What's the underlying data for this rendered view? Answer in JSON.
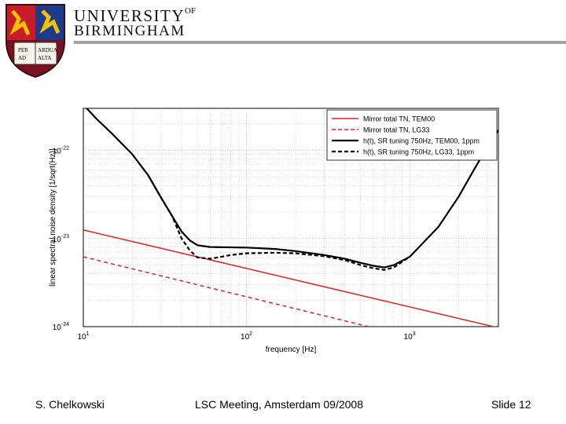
{
  "header": {
    "university_line1": "UNIVERSITY",
    "university_of": "OF",
    "university_line2": "BIRMINGHAM",
    "crest_motto": [
      "PER",
      "ARDUA",
      "AD",
      "ALTA"
    ]
  },
  "chart_data": {
    "type": "line",
    "title": "",
    "xlabel": "frequency [Hz]",
    "ylabel": "linear spectral noise density [1/sqrt(Hz)]",
    "x_scale": "log",
    "y_scale": "log",
    "xlim": [
      10,
      3500
    ],
    "ylim": [
      1e-24,
      3e-22
    ],
    "x_ticks": [
      {
        "base": "10",
        "exp": "1"
      },
      {
        "base": "10",
        "exp": "2"
      },
      {
        "base": "10",
        "exp": "3"
      }
    ],
    "y_ticks": [
      {
        "base": "10",
        "exp": "-24"
      },
      {
        "base": "10",
        "exp": "-23"
      },
      {
        "base": "10",
        "exp": "-22"
      }
    ],
    "grid": true,
    "legend_position": "top-right",
    "series": [
      {
        "name": "Mirror total TN, TEM00",
        "color": "#dd2222",
        "style": "solid",
        "x": [
          10,
          3500
        ],
        "y": [
          1.25e-23,
          9.7e-25
        ]
      },
      {
        "name": "Mirror total TN, LG33",
        "color": "#dd2222",
        "style": "dashed",
        "x": [
          10,
          600
        ],
        "y": [
          6.2e-24,
          9.7e-25
        ]
      },
      {
        "name": "h(t), SR tuning 750Hz, TEM00, 1ppm",
        "color": "#000000",
        "style": "solid",
        "x": [
          10,
          12,
          15,
          20,
          25,
          30,
          35,
          40,
          45,
          50,
          60,
          80,
          100,
          150,
          200,
          300,
          400,
          500,
          600,
          700,
          800,
          1000,
          1500,
          2000,
          2500,
          3000,
          3500
        ],
        "y": [
          3.3e-22,
          2.3e-22,
          1.55e-22,
          9e-23,
          5.2e-23,
          2.9e-23,
          1.8e-23,
          1.2e-23,
          9.5e-24,
          8.4e-24,
          8e-24,
          7.95e-24,
          7.9e-24,
          7.6e-24,
          7.2e-24,
          6.5e-24,
          5.9e-24,
          5.3e-24,
          4.9e-24,
          4.7e-24,
          5e-24,
          6.2e-24,
          1.35e-23,
          3e-23,
          6.2e-23,
          1.1e-22,
          1.7e-22
        ]
      },
      {
        "name": "h(t), SR tuning 750Hz, LG33, 1ppm",
        "color": "#000000",
        "style": "dashed",
        "x": [
          25,
          30,
          35,
          40,
          45,
          50,
          60,
          70,
          80,
          100,
          150,
          200,
          300,
          400,
          500,
          600,
          700,
          800,
          1000
        ],
        "y": [
          5.2e-23,
          2.9e-23,
          1.8e-23,
          1e-23,
          7.3e-24,
          6.1e-24,
          5.9e-24,
          6.2e-24,
          6.5e-24,
          6.8e-24,
          6.9e-24,
          6.8e-24,
          6.3e-24,
          5.7e-24,
          5e-24,
          4.6e-24,
          4.4e-24,
          4.7e-24,
          6.2e-24
        ]
      }
    ]
  },
  "footer": {
    "author": "S. Chelkowski",
    "meeting": "LSC Meeting, Amsterdam 09/2008",
    "slide": "Slide 12"
  }
}
